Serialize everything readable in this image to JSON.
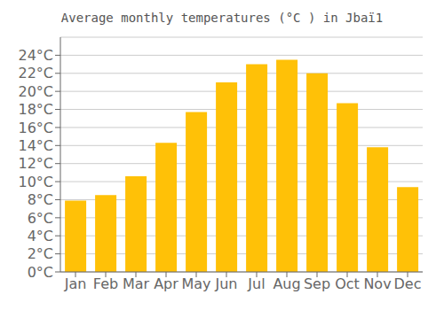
{
  "chart_data": {
    "type": "bar",
    "title": "Average monthly temperatures (°C ) in Jbaï1",
    "categories": [
      "Jan",
      "Feb",
      "Mar",
      "Apr",
      "May",
      "Jun",
      "Jul",
      "Aug",
      "Sep",
      "Oct",
      "Nov",
      "Dec"
    ],
    "values": [
      7.9,
      8.5,
      10.6,
      14.3,
      17.7,
      21.0,
      23.0,
      23.5,
      22.0,
      18.7,
      13.8,
      9.4
    ],
    "color": "#FFC107",
    "ylim": [
      0,
      26
    ],
    "yticks": [
      {
        "value": 0,
        "label": "0°C"
      },
      {
        "value": 2,
        "label": "2°C"
      },
      {
        "value": 4,
        "label": "4°C"
      },
      {
        "value": 6,
        "label": "6°C"
      },
      {
        "value": 8,
        "label": "8°C"
      },
      {
        "value": 10,
        "label": "10°C"
      },
      {
        "value": 12,
        "label": "12°C"
      },
      {
        "value": 14,
        "label": "14°C"
      },
      {
        "value": 16,
        "label": "16°C"
      },
      {
        "value": 18,
        "label": "18°C"
      },
      {
        "value": 20,
        "label": "20°C"
      },
      {
        "value": 22,
        "label": "22°C"
      },
      {
        "value": 24,
        "label": "24°C"
      }
    ],
    "grid": true
  }
}
